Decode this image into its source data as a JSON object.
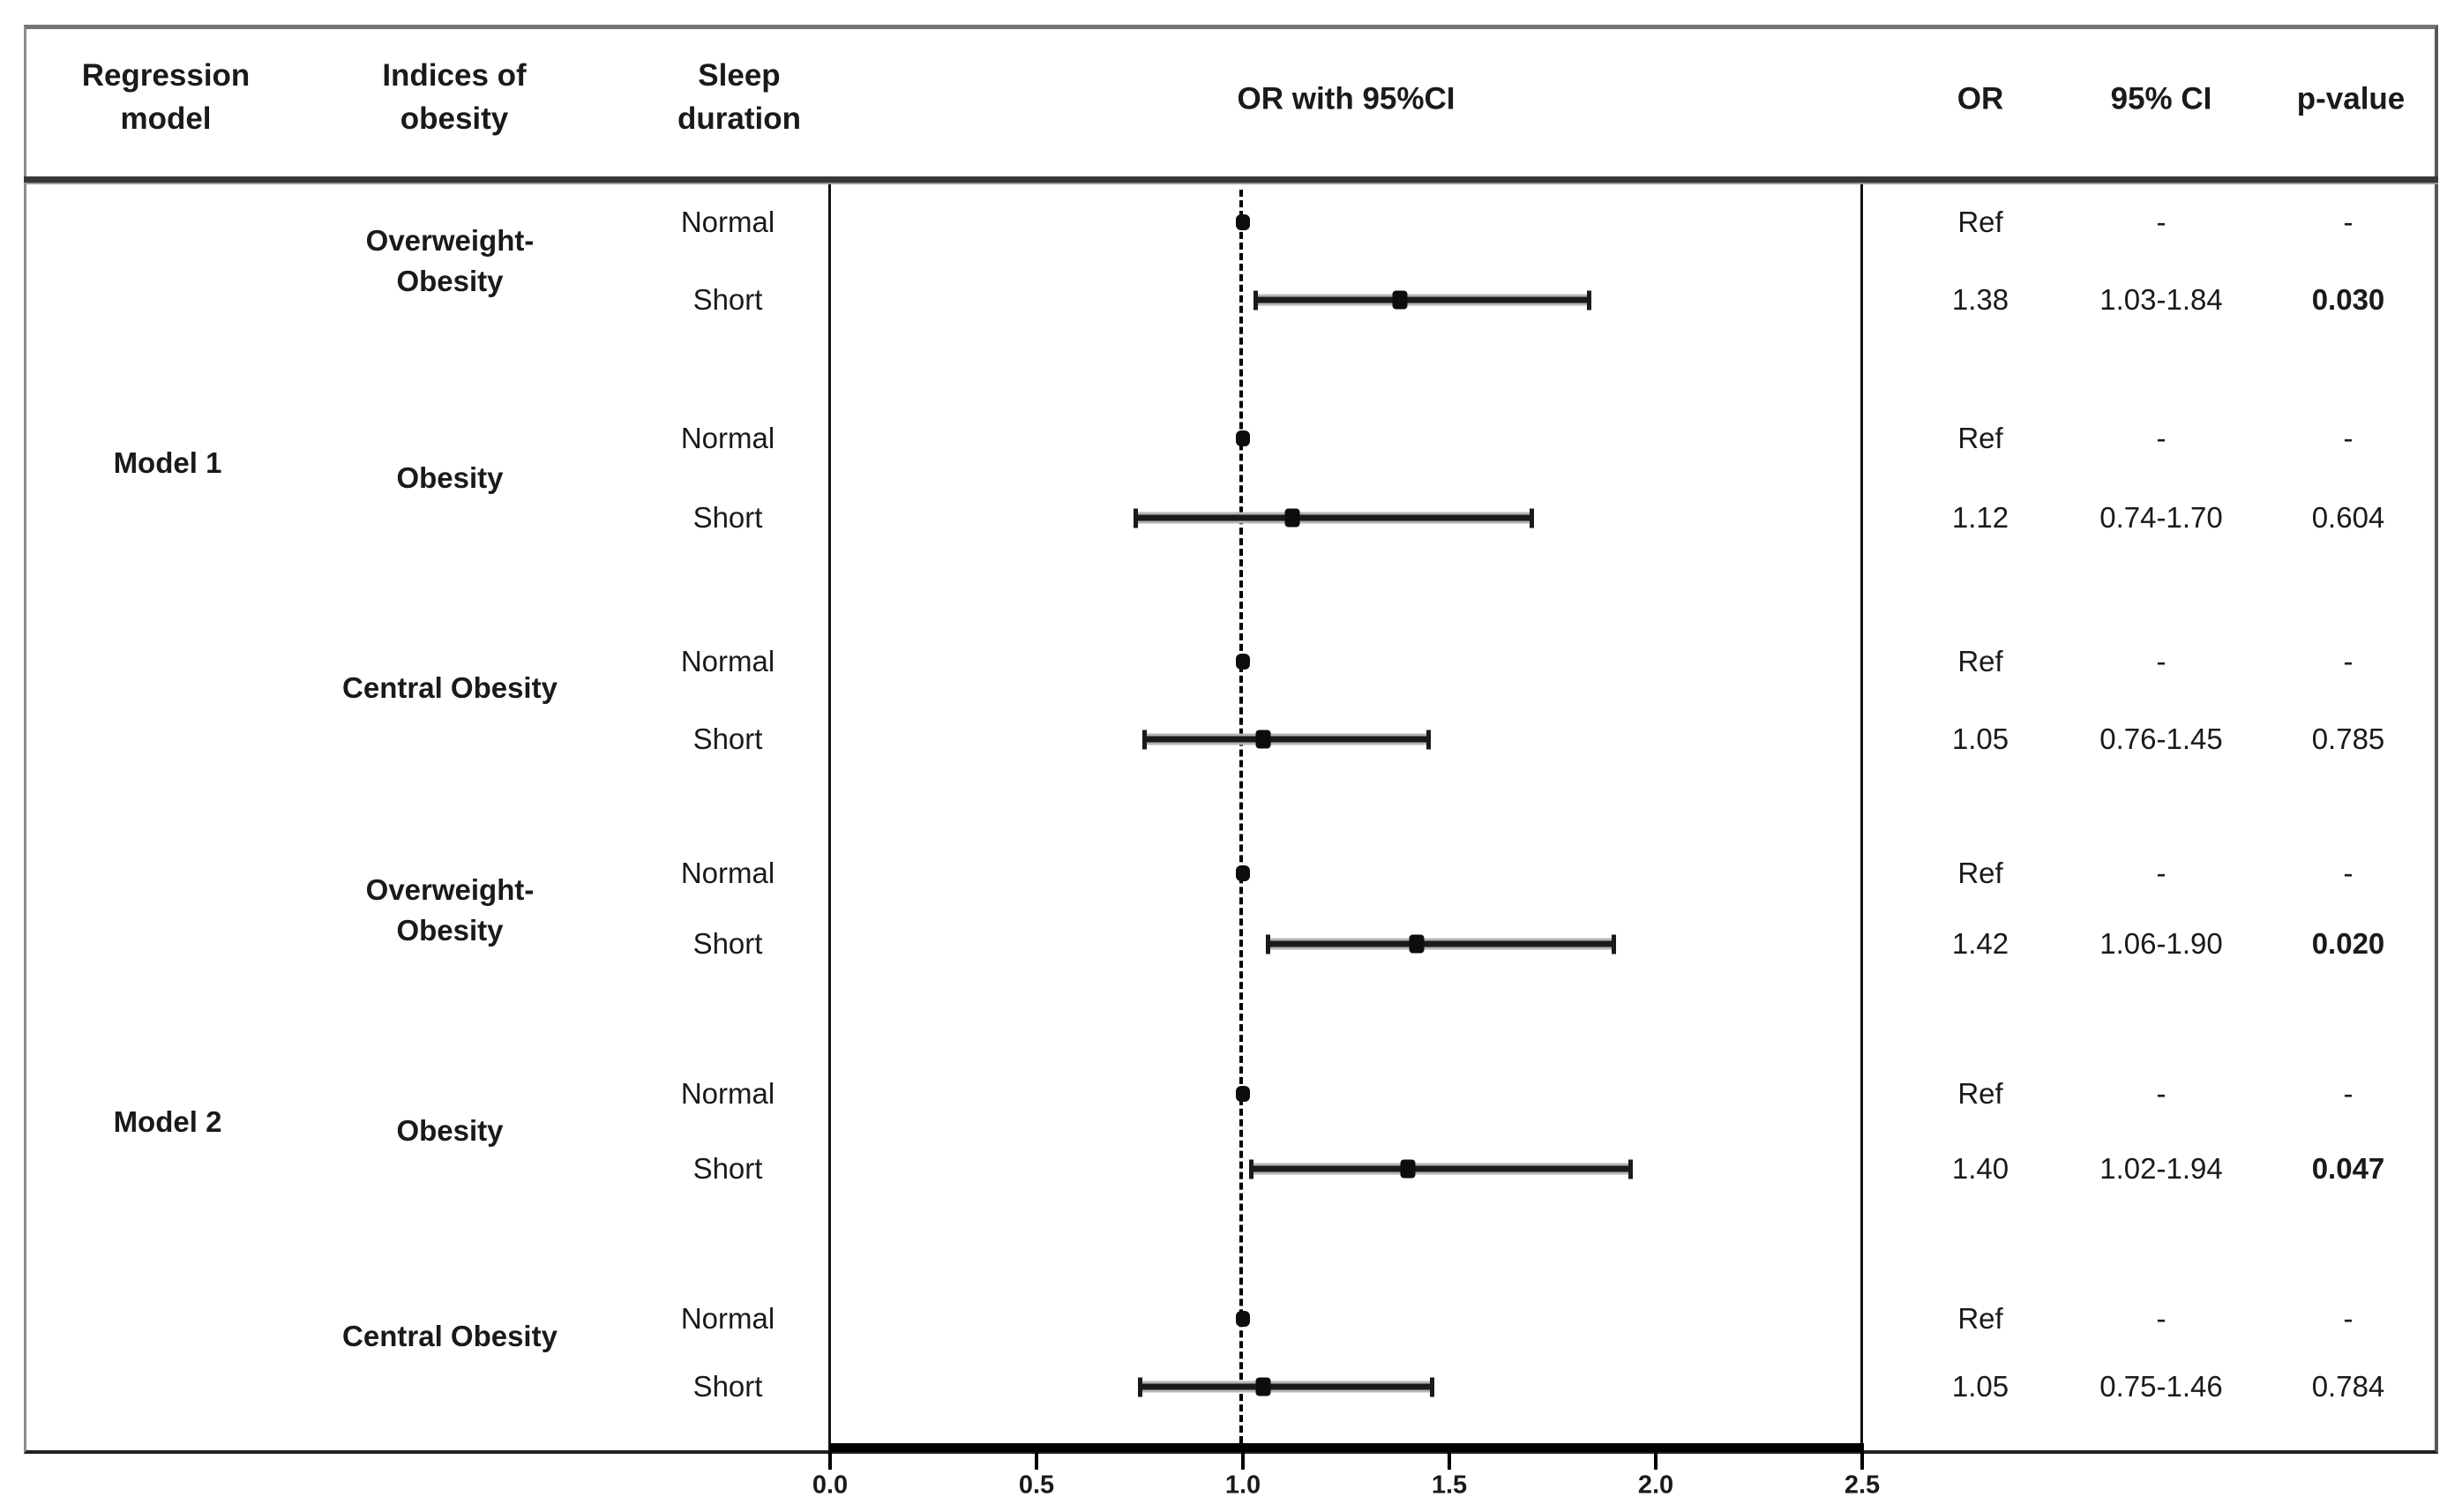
{
  "header": {
    "regression_model": "Regression\nmodel",
    "indices_of_obesity": "Indices of\nobesity",
    "sleep_duration": "Sleep\nduration",
    "plot_title": "OR with 95%CI",
    "or": "OR",
    "ci": "95% CI",
    "p": "p-value"
  },
  "colors": {
    "band_gray": "#e6e6e6",
    "ink": "#1a1a1a",
    "bar": "#1a1a1a",
    "bar_halo": "#b5b5b5"
  },
  "chart_data": {
    "type": "forest",
    "title": "OR with 95%CI",
    "x_axis": {
      "tick_labels": [
        "0.0",
        "0.5",
        "1.0",
        "1.5",
        "2.0",
        "2.5"
      ],
      "tick_values": [
        0,
        0.5,
        1.0,
        1.5,
        2.0,
        2.5
      ],
      "min": 0,
      "max": 2.5,
      "reference_line": 1.0,
      "grid": false
    },
    "columns": [
      "Regression model",
      "Indices of obesity",
      "Sleep duration",
      "OR with 95%CI",
      "OR",
      "95% CI",
      "p-value"
    ],
    "models": [
      {
        "label": "Model 1",
        "shaded": true,
        "groups": [
          {
            "index": "Overweight-\nObesity",
            "rows": [
              {
                "sleep": "Normal",
                "or": "Ref",
                "ci": "-",
                "p": "-",
                "ref": true,
                "or_value": 1.0,
                "bold_p": false
              },
              {
                "sleep": "Short",
                "or": "1.38",
                "ci": "1.03-1.84",
                "p": "0.030",
                "ref": false,
                "or_value": 1.38,
                "ci_low": 1.03,
                "ci_high": 1.84,
                "bold_p": true
              }
            ]
          },
          {
            "index": "Obesity",
            "rows": [
              {
                "sleep": "Normal",
                "or": "Ref",
                "ci": "-",
                "p": "-",
                "ref": true,
                "or_value": 1.0,
                "bold_p": false
              },
              {
                "sleep": "Short",
                "or": "1.12",
                "ci": "0.74-1.70",
                "p": "0.604",
                "ref": false,
                "or_value": 1.12,
                "ci_low": 0.74,
                "ci_high": 1.7,
                "bold_p": false
              }
            ]
          },
          {
            "index": "Central Obesity",
            "rows": [
              {
                "sleep": "Normal",
                "or": "Ref",
                "ci": "-",
                "p": "-",
                "ref": true,
                "or_value": 1.0,
                "bold_p": false
              },
              {
                "sleep": "Short",
                "or": "1.05",
                "ci": "0.76-1.45",
                "p": "0.785",
                "ref": false,
                "or_value": 1.05,
                "ci_low": 0.76,
                "ci_high": 1.45,
                "bold_p": false
              }
            ]
          }
        ]
      },
      {
        "label": "Model 2",
        "shaded": false,
        "groups": [
          {
            "index": "Overweight-\nObesity",
            "rows": [
              {
                "sleep": "Normal",
                "or": "Ref",
                "ci": "-",
                "p": "-",
                "ref": true,
                "or_value": 1.0,
                "bold_p": false
              },
              {
                "sleep": "Short",
                "or": "1.42",
                "ci": "1.06-1.90",
                "p": "0.020",
                "ref": false,
                "or_value": 1.42,
                "ci_low": 1.06,
                "ci_high": 1.9,
                "bold_p": true
              }
            ]
          },
          {
            "index": "Obesity",
            "rows": [
              {
                "sleep": "Normal",
                "or": "Ref",
                "ci": "-",
                "p": "-",
                "ref": true,
                "or_value": 1.0,
                "bold_p": false
              },
              {
                "sleep": "Short",
                "or": "1.40",
                "ci": "1.02-1.94",
                "p": "0.047",
                "ref": false,
                "or_value": 1.4,
                "ci_low": 1.02,
                "ci_high": 1.94,
                "bold_p": true
              }
            ]
          },
          {
            "index": "Central Obesity",
            "rows": [
              {
                "sleep": "Normal",
                "or": "Ref",
                "ci": "-",
                "p": "-",
                "ref": true,
                "or_value": 1.0,
                "bold_p": false
              },
              {
                "sleep": "Short",
                "or": "1.05",
                "ci": "0.75-1.46",
                "p": "0.784",
                "ref": false,
                "or_value": 1.05,
                "ci_low": 0.75,
                "ci_high": 1.46,
                "bold_p": false
              }
            ]
          }
        ]
      }
    ]
  }
}
